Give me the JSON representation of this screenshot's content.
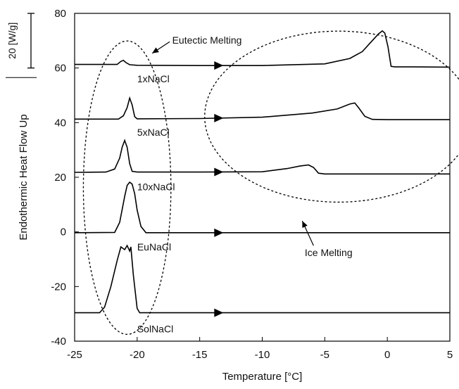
{
  "chart_data": {
    "type": "line",
    "xlabel": "Temperature [°C]",
    "ylabel": "Endothermic Heat Flow Up",
    "xlim": [
      -25,
      5
    ],
    "ylim": [
      -40,
      80
    ],
    "x_ticks": [
      -25,
      -20,
      -15,
      -10,
      -5,
      0,
      5
    ],
    "y_ticks": [
      -40,
      -20,
      0,
      20,
      40,
      60,
      80
    ],
    "x_tick_labels": [
      "-25",
      "-20",
      "-15",
      "-10",
      "-5",
      "0",
      "5"
    ],
    "y_tick_labels": [
      "-40",
      "-20",
      "0",
      "20",
      "40",
      "60",
      "80"
    ],
    "grid": false,
    "scale_bar": {
      "label": "20 [W/g]",
      "y_top": 80,
      "y_bottom": 60
    },
    "series": [
      {
        "name": "1xNaCl",
        "x": [
          -25,
          -21.6,
          -21.3,
          -21.1,
          -20.9,
          -20.6,
          -20,
          -15,
          -10,
          -5,
          -3,
          -2,
          -1.2,
          -0.7,
          -0.4,
          -0.2,
          0.05,
          0.3,
          0.6,
          2,
          5
        ],
        "y": [
          61.3,
          61.3,
          62.4,
          62.8,
          62.0,
          61.2,
          61.0,
          60.9,
          60.9,
          61.5,
          63.5,
          66,
          70,
          72.5,
          73.6,
          72.8,
          67.8,
          60.6,
          60.4,
          60.4,
          60.3
        ],
        "arrow_at_x": -13.5,
        "label_x": -20,
        "label_y": 56
      },
      {
        "name": "5xNaCl",
        "x": [
          -25,
          -21.5,
          -21.1,
          -20.8,
          -20.6,
          -20.4,
          -20.2,
          -20.0,
          -15,
          -10,
          -6,
          -4,
          -3,
          -2.6,
          -2.3,
          -1.8,
          -1.2,
          0,
          5
        ],
        "y": [
          41.3,
          41.3,
          42.5,
          45.5,
          49.0,
          46.5,
          42.2,
          41.4,
          41.5,
          42.0,
          43.5,
          45.0,
          46.8,
          47.2,
          45.5,
          42.3,
          41.2,
          41.1,
          41.1
        ],
        "arrow_at_x": -13.5,
        "label_x": -20,
        "label_y": 36.5
      },
      {
        "name": "10xNaCl",
        "x": [
          -25,
          -22.5,
          -21.8,
          -21.4,
          -21.2,
          -21.0,
          -20.8,
          -20.6,
          -20.4,
          -20.0,
          -15,
          -10,
          -8,
          -7,
          -6.3,
          -5.9,
          -5.5,
          -5.0,
          0,
          5
        ],
        "y": [
          21.8,
          21.9,
          23,
          27,
          31,
          33.5,
          31,
          25,
          22.2,
          21.9,
          21.9,
          22.0,
          23.2,
          24.1,
          24.5,
          23.6,
          21.5,
          21.2,
          21.2,
          21.2
        ],
        "arrow_at_x": -13.5,
        "label_x": -20,
        "label_y": 16.5
      },
      {
        "name": "EuNaCl",
        "x": [
          -25,
          -21.8,
          -21.4,
          -21.0,
          -20.8,
          -20.6,
          -20.4,
          -20.2,
          -20.0,
          -19.7,
          -19.3,
          -15,
          -10,
          -5,
          0,
          5
        ],
        "y": [
          -0.3,
          -0.2,
          3.5,
          13,
          17,
          18.2,
          17.5,
          14,
          8,
          2,
          -0.3,
          -0.3,
          -0.3,
          -0.3,
          -0.3,
          -0.3
        ],
        "arrow_at_x": -13.5,
        "label_x": -20,
        "label_y": -5.5
      },
      {
        "name": "SolNaCl",
        "x": [
          -25,
          -23.0,
          -22.6,
          -22.1,
          -21.6,
          -21.3,
          -21.0,
          -20.8,
          -20.6,
          -20.5,
          -20.3,
          -20.0,
          -19.8,
          -15,
          -10,
          -5,
          0,
          5
        ],
        "y": [
          -29.6,
          -29.6,
          -27.5,
          -20,
          -10.5,
          -5.5,
          -6.5,
          -5.0,
          -7,
          -5.5,
          -16,
          -28,
          -29.6,
          -29.6,
          -29.6,
          -29.6,
          -29.6,
          -29.6
        ],
        "arrow_at_x": -13.5,
        "label_x": -20,
        "label_y": -35.5
      }
    ],
    "annotations": [
      {
        "id": "eutectic",
        "text": "Eutectic Melting",
        "text_x": -17.2,
        "text_y": 70.2,
        "arrow_from": [
          -17.4,
          69.6
        ],
        "arrow_to": [
          -18.8,
          65.4
        ],
        "ellipse": {
          "cx": -20.8,
          "cy": 16.2,
          "rx": 3.5,
          "ry": 53.7
        }
      },
      {
        "id": "ice",
        "text": "Ice Melting",
        "text_x": -6.6,
        "text_y": -7.6,
        "arrow_from": [
          -5.9,
          -5.0
        ],
        "arrow_to": [
          -6.8,
          4.0
        ],
        "ellipse": {
          "cx": -3.9,
          "cy": 42.2,
          "rx": 10.7,
          "ry": 31.3
        }
      }
    ]
  }
}
